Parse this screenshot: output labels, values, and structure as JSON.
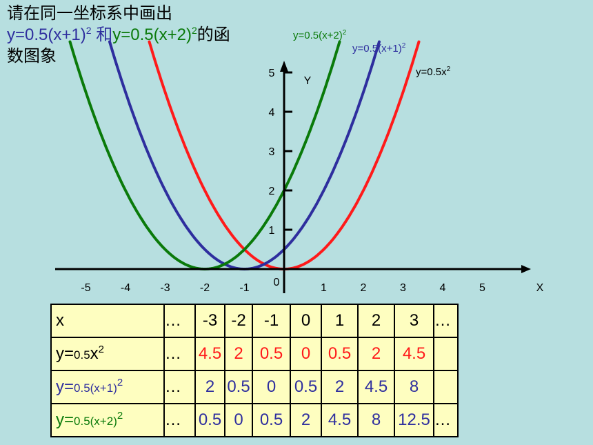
{
  "heading": {
    "line1": "请在同一坐标系中画出",
    "f1": "y=0.5(x+1)",
    "sup": "2",
    "conj": " 和",
    "f2": "y=0.5(x+2)",
    "suffix": "的函",
    "line3": "数图象"
  },
  "colors": {
    "red": "#ff1a1a",
    "blue": "#2e2e9e",
    "green": "#0a7a0a",
    "table_bg": "#fefec0",
    "background": "#b7dfe0"
  },
  "chart_data": {
    "type": "line",
    "xlabel": "X",
    "ylabel": "Y",
    "origin_label": "0",
    "x_ticks": [
      -5,
      -4,
      -3,
      -2,
      -1,
      1,
      2,
      3,
      4,
      5
    ],
    "y_ticks": [
      1,
      2,
      3,
      4,
      5
    ],
    "xlim": [
      -5.5,
      6
    ],
    "ylim": [
      0,
      5.5
    ],
    "series": [
      {
        "name": "y=0.5x",
        "sup": "2",
        "color": "#ff1a1a",
        "a": 1,
        "h": 0
      },
      {
        "name": "y=0.5(x+1)",
        "sup": "2",
        "color": "#2e2e9e",
        "a": 1,
        "h": -1
      },
      {
        "name": "y=0.5(x+2)",
        "sup": "2",
        "color": "#0a7a0a",
        "a": 1,
        "h": -2
      }
    ],
    "table": {
      "header": {
        "label": "x",
        "dots": "…",
        "values": [
          "-3",
          "-2",
          "-1",
          "0",
          "1",
          "2",
          "3"
        ],
        "trail": "…"
      },
      "rows": [
        {
          "pre": "y=",
          "mid": "0.5",
          "var": "x",
          "sup": "2",
          "color": "#000000",
          "value_color": "#ff1a1a",
          "dots": "…",
          "values": [
            "4.5",
            "2",
            "0.5",
            "0",
            "0.5",
            "2",
            "4.5"
          ],
          "trail": ""
        },
        {
          "pre": "y=",
          "mid": "0.5(x+1)",
          "var": "",
          "sup": "2",
          "color": "#2e2e9e",
          "value_color": "#2e2e9e",
          "dots": "…",
          "values": [
            "2",
            "0.5",
            "0",
            "0.5",
            "2",
            "4.5",
            "8"
          ],
          "trail": ""
        },
        {
          "pre": "y=",
          "mid": "0.5(x+2)",
          "var": "",
          "sup": "2",
          "color": "#0a7a0a",
          "value_color": "#2e2e9e",
          "dots": "…",
          "values": [
            "0.5",
            "0",
            "0.5",
            "2",
            "4.5",
            "8",
            "12.5"
          ],
          "trail": "…"
        }
      ]
    }
  }
}
